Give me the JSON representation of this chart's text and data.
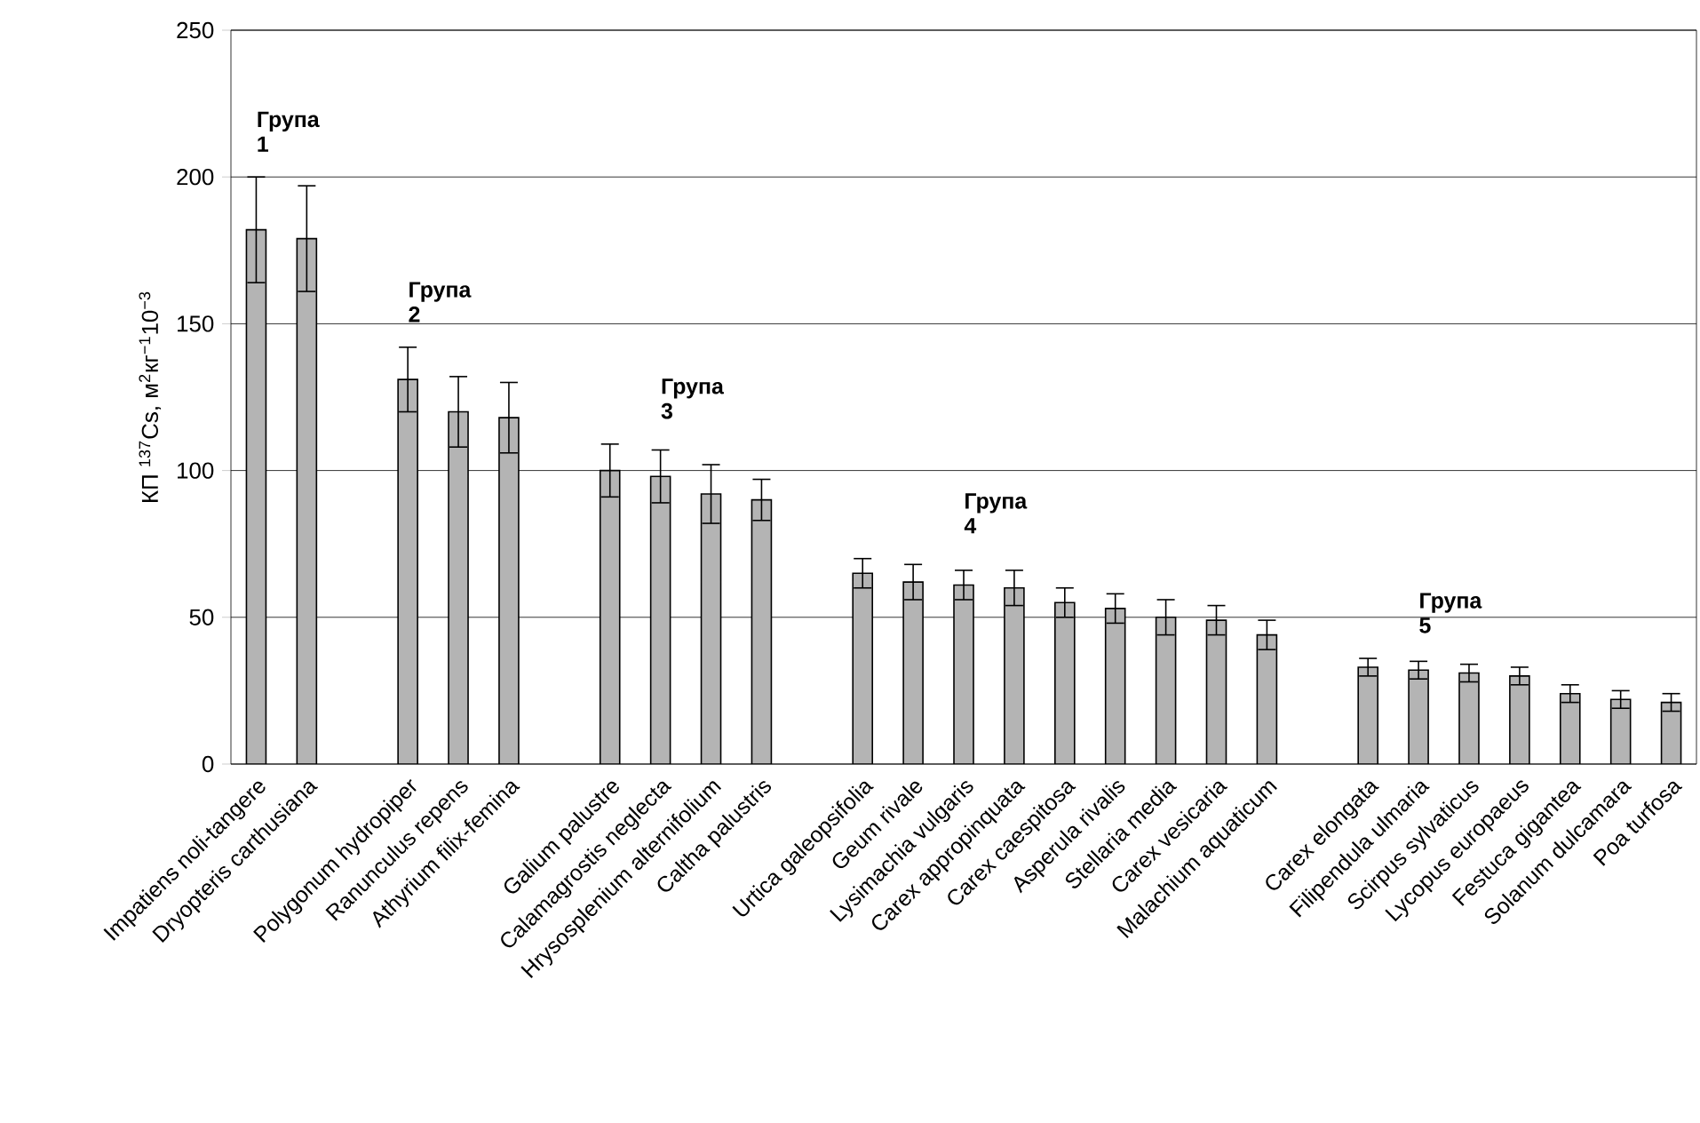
{
  "chart_data": {
    "type": "bar",
    "ylabel": "КП $^{137}$Cs, м$^{2}$кг$^{−1}$10$^{−3}$",
    "categories": [
      "Impatiens noli-tangere",
      "Dryopteris carthusiana",
      null,
      "Polygonum hydropiper",
      "Ranunculus repens",
      "Athyrium filix-femina",
      null,
      "Galium palustre",
      "Calamagrostis neglecta",
      "Hrysosplenium alternifolium",
      "Caltha palustris",
      null,
      "Urtica galeopsifolia",
      "Geum rivale",
      "Lysimachia vulgaris",
      "Carex appropinquata",
      "Carex caespitosa",
      "Asperula rivalis",
      "Stellaria media",
      "Carex vesicaria",
      "Malachium aquaticum",
      null,
      "Carex elongata",
      "Filipendula ulmaria",
      "Scirpus sylvaticus",
      "Lycopus europaeus",
      "Festuca gigantea",
      "Solanum dulcamara",
      "Poa turfosa"
    ],
    "values": [
      182,
      179,
      null,
      131,
      120,
      118,
      null,
      100,
      98,
      92,
      90,
      null,
      65,
      62,
      61,
      60,
      55,
      53,
      50,
      49,
      44,
      null,
      33,
      32,
      31,
      30,
      24,
      22,
      21
    ],
    "errors": [
      18,
      18,
      null,
      11,
      12,
      12,
      null,
      9,
      9,
      10,
      7,
      null,
      5,
      6,
      5,
      6,
      5,
      5,
      6,
      5,
      5,
      null,
      3,
      3,
      3,
      3,
      3,
      3,
      3
    ],
    "color": "#b4b4b4",
    "ylim": [
      0,
      250
    ],
    "yticks": [
      0,
      50,
      100,
      150,
      200,
      250
    ],
    "grid": "y",
    "annotations": [
      "Група 1",
      "Група 2",
      "Група 3",
      "Група 4",
      "Група 5"
    ]
  }
}
